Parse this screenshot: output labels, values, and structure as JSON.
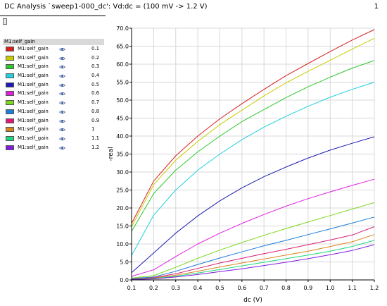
{
  "window": {
    "title": "DC Analysis `sweep1-000_dc': Vd:dc = (100 mV -> 1.2 V)",
    "page_number": "1"
  },
  "legend": {
    "header": "M1:self_gain",
    "items": [
      {
        "label": "M1:self_gain",
        "value": "0.1",
        "color": "#d62020"
      },
      {
        "label": "M1:self_gain",
        "value": "0.2",
        "color": "#c8cc00"
      },
      {
        "label": "M1:self_gain",
        "value": "0.3",
        "color": "#2ec82e"
      },
      {
        "label": "M1:self_gain",
        "value": "0.4",
        "color": "#20d0dc"
      },
      {
        "label": "M1:self_gain",
        "value": "0.5",
        "color": "#1c1cb4"
      },
      {
        "label": "M1:self_gain",
        "value": "0.6",
        "color": "#e020e0"
      },
      {
        "label": "M1:self_gain",
        "value": "0.7",
        "color": "#7cd81c"
      },
      {
        "label": "M1:self_gain",
        "value": "0.8",
        "color": "#1c7cd8"
      },
      {
        "label": "M1:self_gain",
        "value": "0.9",
        "color": "#d81c74"
      },
      {
        "label": "M1:self_gain",
        "value": "1",
        "color": "#d8841c"
      },
      {
        "label": "M1:self_gain",
        "value": "1.1",
        "color": "#1cd87c"
      },
      {
        "label": "M1:self_gain",
        "value": "1.2",
        "color": "#801ce0"
      }
    ]
  },
  "chart_data": {
    "type": "line",
    "xlabel": "dc (V)",
    "ylabel": "-real",
    "xlim": [
      0.1,
      1.2
    ],
    "ylim": [
      0,
      70
    ],
    "x": [
      0.1,
      0.2,
      0.3,
      0.4,
      0.5,
      0.6,
      0.7,
      0.8,
      0.9,
      1.0,
      1.1,
      1.2
    ],
    "x_ticks": [
      "0.1",
      "0.2",
      "0.3",
      "0.4",
      "0.5",
      "0.6",
      "0.7",
      "0.8",
      "0.9",
      "1.0",
      "1.1",
      "1.2"
    ],
    "y_ticks": [
      "0.0",
      "5.0",
      "10.0",
      "15.0",
      "20.0",
      "25.0",
      "30.0",
      "35.0",
      "40.0",
      "45.0",
      "50.0",
      "55.0",
      "60.0",
      "65.0",
      "70.0"
    ],
    "grid": true,
    "series": [
      {
        "name": "0.1",
        "color": "#d62020",
        "values": [
          15.7,
          27.5,
          34.5,
          40.0,
          44.8,
          49.0,
          53.0,
          56.8,
          60.2,
          63.5,
          66.7,
          69.6
        ]
      },
      {
        "name": "0.2",
        "color": "#c8cc00",
        "values": [
          14.8,
          26.5,
          33.3,
          38.5,
          43.2,
          47.2,
          51.2,
          54.8,
          58.0,
          61.1,
          64.2,
          67.2
        ]
      },
      {
        "name": "0.3",
        "color": "#2ec82e",
        "values": [
          13.5,
          24.0,
          30.5,
          35.6,
          40.0,
          44.0,
          47.4,
          50.7,
          53.7,
          56.4,
          58.9,
          61.0
        ]
      },
      {
        "name": "0.4",
        "color": "#20d0dc",
        "values": [
          6.8,
          18.0,
          25.0,
          30.5,
          35.0,
          39.0,
          42.5,
          45.5,
          48.3,
          50.8,
          53.0,
          55.0
        ]
      },
      {
        "name": "0.5",
        "color": "#1c1cb4",
        "values": [
          2.0,
          7.5,
          13.0,
          17.8,
          22.0,
          25.6,
          28.7,
          31.4,
          33.9,
          36.1,
          38.0,
          39.8
        ]
      },
      {
        "name": "0.6",
        "color": "#e020e0",
        "values": [
          1.0,
          2.8,
          6.5,
          10.0,
          13.0,
          15.7,
          18.2,
          20.5,
          22.6,
          24.5,
          26.3,
          28.0
        ]
      },
      {
        "name": "0.7",
        "color": "#7cd81c",
        "values": [
          0.5,
          1.2,
          3.5,
          6.0,
          8.3,
          10.4,
          12.4,
          14.3,
          16.1,
          17.9,
          19.7,
          21.5
        ]
      },
      {
        "name": "0.8",
        "color": "#1c7cd8",
        "values": [
          0.4,
          0.8,
          2.4,
          4.3,
          6.1,
          7.8,
          9.5,
          11.0,
          12.6,
          14.2,
          15.8,
          17.5
        ]
      },
      {
        "name": "0.9",
        "color": "#d81c74",
        "values": [
          0.3,
          0.6,
          1.7,
          3.2,
          4.7,
          6.0,
          7.3,
          8.5,
          9.8,
          11.1,
          12.5,
          14.8
        ]
      },
      {
        "name": "1",
        "color": "#d8841c",
        "values": [
          0.2,
          0.5,
          1.3,
          2.4,
          3.6,
          4.7,
          5.8,
          6.9,
          8.0,
          9.3,
          10.6,
          12.6
        ]
      },
      {
        "name": "1.1",
        "color": "#1cd87c",
        "values": [
          0.2,
          0.4,
          1.0,
          1.9,
          2.9,
          3.9,
          4.9,
          5.9,
          6.9,
          8.0,
          9.3,
          11.0
        ]
      },
      {
        "name": "1.2",
        "color": "#801ce0",
        "values": [
          0.1,
          0.3,
          0.8,
          1.5,
          2.3,
          3.1,
          4.0,
          4.9,
          5.9,
          7.0,
          8.2,
          9.8
        ]
      }
    ]
  }
}
